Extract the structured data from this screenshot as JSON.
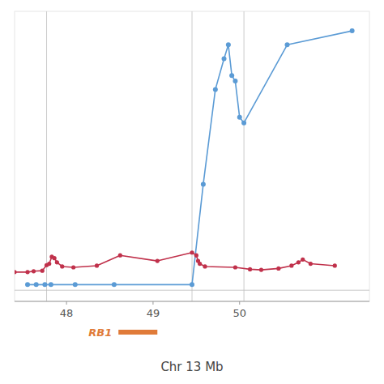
{
  "chart_data": {
    "type": "line",
    "xlabel": "Chr 13 Mb",
    "xlim": [
      47.4,
      51.5
    ],
    "ylim": [
      -0.04,
      1.0
    ],
    "xticks": [
      48,
      49,
      50
    ],
    "tick_labels": "x",
    "grid": false,
    "series": [
      {
        "color": "#5B9BD5",
        "marker": "circle",
        "x": [
          47.55,
          47.65,
          47.75,
          47.82,
          48.1,
          48.55,
          49.45,
          49.58,
          49.72,
          49.82,
          49.87,
          49.91,
          49.95,
          50.0,
          50.05,
          50.55,
          51.3
        ],
        "values": [
          0.02,
          0.02,
          0.02,
          0.02,
          0.02,
          0.02,
          0.02,
          0.38,
          0.72,
          0.83,
          0.88,
          0.77,
          0.75,
          0.62,
          0.6,
          0.88,
          0.93
        ]
      },
      {
        "color": "#C0314B",
        "marker": "circle",
        "x": [
          47.4,
          47.55,
          47.62,
          47.72,
          47.77,
          47.8,
          47.83,
          47.86,
          47.89,
          47.95,
          48.08,
          48.35,
          48.62,
          49.05,
          49.45,
          49.5,
          49.52,
          49.54,
          49.6,
          49.95,
          50.12,
          50.25,
          50.45,
          50.6,
          50.68,
          50.73,
          50.82,
          51.1
        ],
        "values": [
          0.065,
          0.065,
          0.068,
          0.07,
          0.09,
          0.095,
          0.12,
          0.115,
          0.1,
          0.085,
          0.082,
          0.088,
          0.125,
          0.105,
          0.135,
          0.125,
          0.105,
          0.095,
          0.085,
          0.082,
          0.075,
          0.073,
          0.078,
          0.088,
          0.1,
          0.11,
          0.095,
          0.088
        ]
      }
    ],
    "vlines": {
      "values": [
        47.77,
        49.45,
        50.05
      ],
      "color": "#CCCCCC"
    },
    "hlines": [
      0
    ],
    "annotations": [
      {
        "text": "RB1",
        "x": [
          48.6,
          49.05
        ],
        "color": "#E07B39"
      }
    ]
  }
}
